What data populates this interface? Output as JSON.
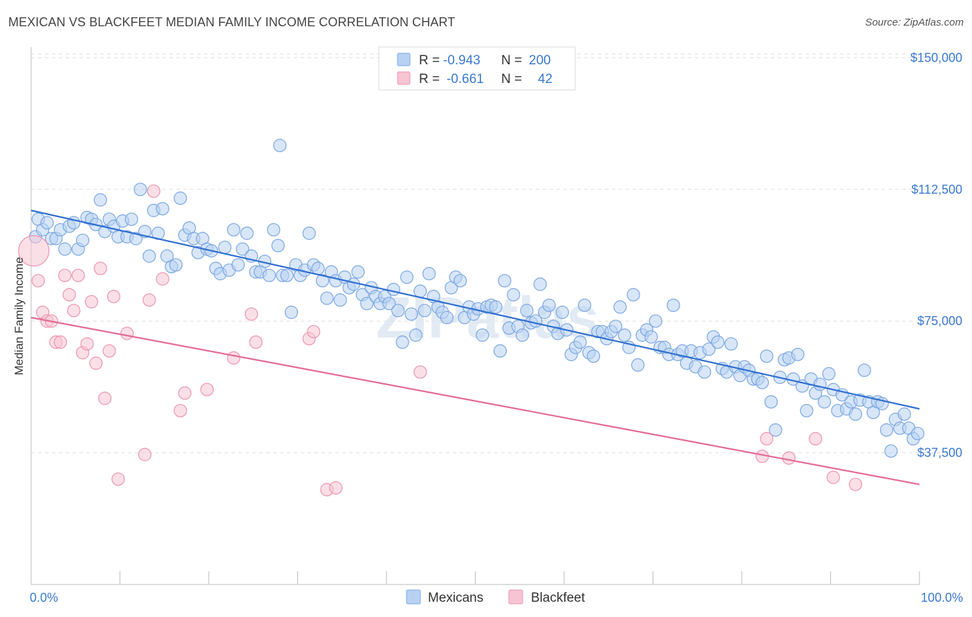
{
  "title": "MEXICAN VS BLACKFEET MEDIAN FAMILY INCOME CORRELATION CHART",
  "source": "Source: ZipAtlas.com",
  "watermark": "ZIPatlas",
  "colors": {
    "mexicans_fill": "#b8d1f3",
    "mexicans_stroke": "#7aa6e0",
    "mexicans_line": "#2f6fd1",
    "blackfeet_fill": "#f7c4d3",
    "blackfeet_stroke": "#eb94b0",
    "blackfeet_line": "#e46a94",
    "tick_text": "#3b78d0"
  },
  "legend": {
    "r_label": "R =",
    "n_label": "N =",
    "rows": [
      {
        "series": "Mexicans",
        "r": "-0.943",
        "n": "200"
      },
      {
        "series": "Blackfeet",
        "r": "-0.661",
        "n": "42"
      }
    ]
  },
  "bottom_legend": [
    "Mexicans",
    "Blackfeet"
  ],
  "chart_data": {
    "type": "scatter",
    "title": "MEXICAN VS BLACKFEET MEDIAN FAMILY INCOME CORRELATION CHART",
    "xlabel": "",
    "ylabel": "Median Family Income",
    "x_tick_labels": [
      "0.0%",
      "100.0%"
    ],
    "y_tick_labels": [
      "$37,500",
      "$75,000",
      "$112,500",
      "$150,000"
    ],
    "y_ticks": [
      37500,
      75000,
      112500,
      150000
    ],
    "xlim": [
      0,
      100
    ],
    "ylim": [
      0,
      155000
    ],
    "grid": true,
    "legend_position": "top-center",
    "series": [
      {
        "name": "Mexicans",
        "trend": [
          [
            0,
            106500
          ],
          [
            100,
            50000
          ]
        ],
        "points": [
          [
            0.5,
            99000
          ],
          [
            0.8,
            104000
          ],
          [
            1.3,
            101000
          ],
          [
            1.8,
            103000
          ],
          [
            2.3,
            98500
          ],
          [
            2.8,
            98500
          ],
          [
            3.3,
            101000
          ],
          [
            3.8,
            95500
          ],
          [
            4.3,
            102000
          ],
          [
            4.8,
            103000
          ],
          [
            5.3,
            95500
          ],
          [
            5.8,
            98000
          ],
          [
            6.3,
            104500
          ],
          [
            6.8,
            104000
          ],
          [
            7.3,
            102500
          ],
          [
            7.8,
            109500
          ],
          [
            8.3,
            100500
          ],
          [
            8.8,
            104000
          ],
          [
            9.3,
            102000
          ],
          [
            9.8,
            99000
          ],
          [
            10.3,
            103500
          ],
          [
            10.8,
            99000
          ],
          [
            11.3,
            104000
          ],
          [
            11.8,
            98500
          ],
          [
            12.3,
            112500
          ],
          [
            12.8,
            100500
          ],
          [
            13.3,
            93500
          ],
          [
            13.8,
            106500
          ],
          [
            14.3,
            100000
          ],
          [
            14.8,
            107000
          ],
          [
            15.3,
            93500
          ],
          [
            15.8,
            90500
          ],
          [
            16.3,
            91000
          ],
          [
            16.8,
            110000
          ],
          [
            17.3,
            99500
          ],
          [
            17.8,
            101500
          ],
          [
            18.3,
            98500
          ],
          [
            18.8,
            94500
          ],
          [
            19.3,
            98500
          ],
          [
            19.8,
            95500
          ],
          [
            20.3,
            95000
          ],
          [
            20.8,
            90000
          ],
          [
            21.3,
            88500
          ],
          [
            21.8,
            96000
          ],
          [
            22.3,
            89500
          ],
          [
            22.8,
            101000
          ],
          [
            23.3,
            91000
          ],
          [
            23.8,
            95500
          ],
          [
            24.3,
            100000
          ],
          [
            24.8,
            93500
          ],
          [
            25.3,
            89000
          ],
          [
            25.8,
            89000
          ],
          [
            26.3,
            92000
          ],
          [
            26.8,
            88000
          ],
          [
            27.3,
            101000
          ],
          [
            27.8,
            96500
          ],
          [
            28.3,
            88000
          ],
          [
            28.8,
            88000
          ],
          [
            29.3,
            77500
          ],
          [
            29.8,
            91000
          ],
          [
            30.3,
            88000
          ],
          [
            30.8,
            89500
          ],
          [
            31.3,
            100000
          ],
          [
            31.8,
            91000
          ],
          [
            32.3,
            90000
          ],
          [
            32.8,
            86500
          ],
          [
            33.3,
            81500
          ],
          [
            33.8,
            89000
          ],
          [
            34.3,
            86500
          ],
          [
            34.8,
            81000
          ],
          [
            35.3,
            87500
          ],
          [
            35.8,
            84500
          ],
          [
            36.3,
            85500
          ],
          [
            36.8,
            89000
          ],
          [
            37.3,
            82500
          ],
          [
            37.8,
            80000
          ],
          [
            38.3,
            84500
          ],
          [
            38.8,
            82000
          ],
          [
            39.3,
            80000
          ],
          [
            39.8,
            82000
          ],
          [
            40.3,
            80000
          ],
          [
            40.8,
            84000
          ],
          [
            41.3,
            78000
          ],
          [
            41.8,
            69000
          ],
          [
            42.3,
            87500
          ],
          [
            42.8,
            77000
          ],
          [
            43.3,
            71000
          ],
          [
            43.8,
            83500
          ],
          [
            44.3,
            78000
          ],
          [
            44.8,
            88500
          ],
          [
            45.3,
            82000
          ],
          [
            45.8,
            79000
          ],
          [
            46.3,
            77500
          ],
          [
            46.8,
            76000
          ],
          [
            47.3,
            84500
          ],
          [
            47.8,
            87500
          ],
          [
            48.3,
            86500
          ],
          [
            48.8,
            76000
          ],
          [
            49.3,
            79000
          ],
          [
            49.8,
            77000
          ],
          [
            50.3,
            78500
          ],
          [
            50.8,
            71000
          ],
          [
            51.3,
            79000
          ],
          [
            51.8,
            79500
          ],
          [
            52.3,
            79000
          ],
          [
            52.8,
            66500
          ],
          [
            53.3,
            86500
          ],
          [
            53.8,
            73000
          ],
          [
            54.3,
            82500
          ],
          [
            54.8,
            73500
          ],
          [
            55.3,
            71000
          ],
          [
            55.8,
            78000
          ],
          [
            56.3,
            74500
          ],
          [
            56.8,
            75000
          ],
          [
            57.3,
            85500
          ],
          [
            57.8,
            77500
          ],
          [
            58.3,
            79500
          ],
          [
            58.8,
            73500
          ],
          [
            59.3,
            71500
          ],
          [
            59.8,
            77500
          ],
          [
            60.3,
            72500
          ],
          [
            60.8,
            65500
          ],
          [
            61.3,
            67500
          ],
          [
            61.8,
            69000
          ],
          [
            62.3,
            79500
          ],
          [
            62.8,
            66000
          ],
          [
            63.3,
            65000
          ],
          [
            63.8,
            72000
          ],
          [
            64.3,
            72000
          ],
          [
            64.8,
            70000
          ],
          [
            65.3,
            72000
          ],
          [
            65.8,
            73500
          ],
          [
            66.3,
            79000
          ],
          [
            66.8,
            71000
          ],
          [
            67.3,
            67500
          ],
          [
            67.8,
            82500
          ],
          [
            68.3,
            62500
          ],
          [
            68.8,
            71000
          ],
          [
            69.3,
            72500
          ],
          [
            69.8,
            70500
          ],
          [
            70.3,
            75000
          ],
          [
            70.8,
            67500
          ],
          [
            71.3,
            67500
          ],
          [
            71.8,
            65500
          ],
          [
            72.3,
            79500
          ],
          [
            72.8,
            65500
          ],
          [
            73.3,
            66500
          ],
          [
            73.8,
            63000
          ],
          [
            74.3,
            66500
          ],
          [
            74.8,
            62000
          ],
          [
            75.3,
            66000
          ],
          [
            75.8,
            60500
          ],
          [
            76.3,
            67000
          ],
          [
            76.8,
            70500
          ],
          [
            77.3,
            69000
          ],
          [
            77.8,
            61500
          ],
          [
            78.3,
            60500
          ],
          [
            78.8,
            68500
          ],
          [
            79.3,
            62000
          ],
          [
            79.8,
            59500
          ],
          [
            80.3,
            62000
          ],
          [
            80.8,
            61000
          ],
          [
            81.3,
            58500
          ],
          [
            81.8,
            58500
          ],
          [
            82.3,
            57500
          ],
          [
            82.8,
            65000
          ],
          [
            83.3,
            52000
          ],
          [
            83.8,
            44000
          ],
          [
            84.3,
            59000
          ],
          [
            84.8,
            64000
          ],
          [
            85.3,
            64500
          ],
          [
            85.8,
            58500
          ],
          [
            86.3,
            65500
          ],
          [
            86.8,
            56500
          ],
          [
            87.3,
            49500
          ],
          [
            87.8,
            58500
          ],
          [
            88.3,
            54500
          ],
          [
            88.8,
            57000
          ],
          [
            89.3,
            52000
          ],
          [
            89.8,
            60000
          ],
          [
            90.3,
            55500
          ],
          [
            90.8,
            49500
          ],
          [
            91.3,
            54000
          ],
          [
            91.8,
            50000
          ],
          [
            92.3,
            52000
          ],
          [
            92.8,
            48500
          ],
          [
            93.3,
            52500
          ],
          [
            93.8,
            61000
          ],
          [
            94.3,
            52000
          ],
          [
            94.8,
            49000
          ],
          [
            95.3,
            52000
          ],
          [
            95.8,
            51500
          ],
          [
            96.3,
            44000
          ],
          [
            96.8,
            38000
          ],
          [
            97.3,
            47000
          ],
          [
            97.8,
            44500
          ],
          [
            98.3,
            48500
          ],
          [
            98.8,
            44500
          ],
          [
            99.3,
            41500
          ],
          [
            99.8,
            43000
          ],
          [
            28.0,
            125000
          ]
        ]
      },
      {
        "name": "Blackfeet",
        "trend": [
          [
            0,
            76000
          ],
          [
            100,
            28500
          ]
        ],
        "points": [
          [
            0.3,
            95000
          ],
          [
            0.8,
            86500
          ],
          [
            1.3,
            77500
          ],
          [
            1.8,
            75000
          ],
          [
            2.3,
            75000
          ],
          [
            2.8,
            69000
          ],
          [
            3.3,
            69000
          ],
          [
            3.8,
            88000
          ],
          [
            4.3,
            82500
          ],
          [
            4.8,
            78000
          ],
          [
            5.3,
            88000
          ],
          [
            5.8,
            66000
          ],
          [
            6.3,
            68500
          ],
          [
            6.8,
            80500
          ],
          [
            7.3,
            63000
          ],
          [
            7.8,
            90000
          ],
          [
            8.3,
            53000
          ],
          [
            8.8,
            66500
          ],
          [
            9.3,
            82000
          ],
          [
            9.8,
            30000
          ],
          [
            10.8,
            71500
          ],
          [
            12.8,
            37000
          ],
          [
            13.3,
            81000
          ],
          [
            13.8,
            112000
          ],
          [
            14.8,
            87000
          ],
          [
            16.8,
            49500
          ],
          [
            17.3,
            54500
          ],
          [
            19.8,
            55500
          ],
          [
            22.8,
            64500
          ],
          [
            24.8,
            77000
          ],
          [
            25.3,
            69000
          ],
          [
            31.3,
            70000
          ],
          [
            31.8,
            72000
          ],
          [
            33.3,
            27000
          ],
          [
            34.3,
            27500
          ],
          [
            43.8,
            60500
          ],
          [
            82.8,
            41500
          ],
          [
            82.3,
            36500
          ],
          [
            85.3,
            36000
          ],
          [
            88.3,
            41500
          ],
          [
            90.3,
            30500
          ],
          [
            92.8,
            28500
          ]
        ]
      }
    ]
  }
}
